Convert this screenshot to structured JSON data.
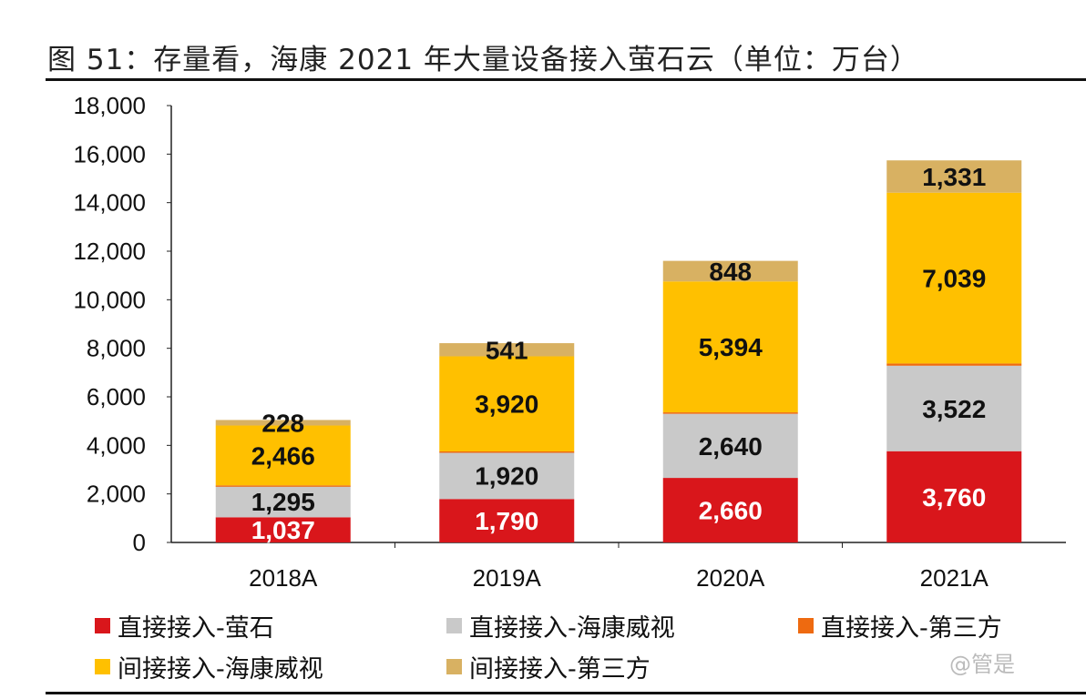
{
  "title": "图 51：存量看，海康 2021 年大量设备接入萤石云（单位：万台）",
  "watermark": "@管是",
  "chart_data": {
    "type": "bar",
    "stacked": true,
    "categories": [
      "2018A",
      "2019A",
      "2020A",
      "2021A"
    ],
    "ylim": [
      0,
      18000
    ],
    "yticks": [
      0,
      2000,
      4000,
      6000,
      8000,
      10000,
      12000,
      14000,
      16000,
      18000
    ],
    "ytick_labels": [
      "0",
      "2,000",
      "4,000",
      "6,000",
      "8,000",
      "10,000",
      "12,000",
      "14,000",
      "16,000",
      "18,000"
    ],
    "grid": false,
    "legend_position": "bottom",
    "series": [
      {
        "name": "直接接入-萤石",
        "color": "#D9161B",
        "values": [
          1037,
          1790,
          2660,
          3760
        ],
        "labels": [
          "1,037",
          "1,790",
          "2,660",
          "3,760"
        ],
        "label_color": "#ffffff"
      },
      {
        "name": "直接接入-海康威视",
        "color": "#C9C9C9",
        "values": [
          1295,
          1920,
          2640,
          3522
        ],
        "labels": [
          "1,295",
          "1,920",
          "2,640",
          "3,522"
        ],
        "label_color": "#111111"
      },
      {
        "name": "直接接入-第三方",
        "color": "#EE6A10",
        "values": [
          20,
          40,
          60,
          90
        ],
        "labels": [
          "",
          "",
          "",
          ""
        ],
        "label_color": "#111111"
      },
      {
        "name": "间接接入-海康威视",
        "color": "#FFC000",
        "values": [
          2466,
          3920,
          5394,
          7039
        ],
        "labels": [
          "2,466",
          "3,920",
          "5,394",
          "7,039"
        ],
        "label_color": "#111111"
      },
      {
        "name": "间接接入-第三方",
        "color": "#D8B162",
        "values": [
          228,
          541,
          848,
          1331
        ],
        "labels": [
          "228",
          "541",
          "848",
          "1,331"
        ],
        "label_color": "#111111"
      }
    ]
  }
}
